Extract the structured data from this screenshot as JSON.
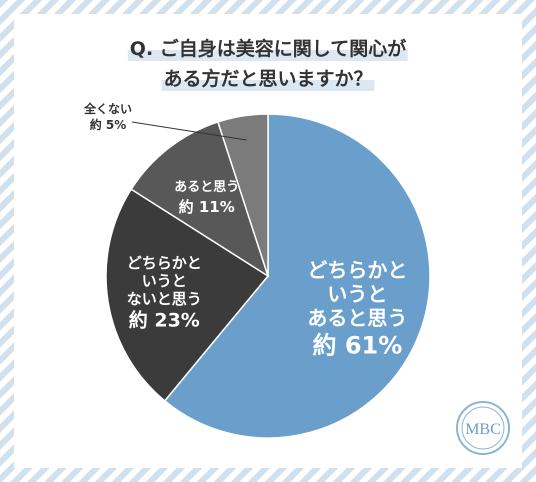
{
  "chart_data": {
    "type": "pie",
    "title": [
      "Q. ご自身は美容に関して関心が",
      "ある方だと思いますか？"
    ],
    "categories": [
      "どちらかと\nいうと\nあると思う",
      "どちらかと\nいうと\nないと思う",
      "あると思う",
      "全くない"
    ],
    "values": [
      61,
      23,
      11,
      5
    ],
    "value_labels": [
      "約 61%",
      "約 23%",
      "約 11%",
      "約 5%"
    ],
    "colors": [
      "#6a9fcc",
      "#3b3b3b",
      "#585858",
      "#7b7b7b"
    ],
    "logo": "MBC"
  }
}
